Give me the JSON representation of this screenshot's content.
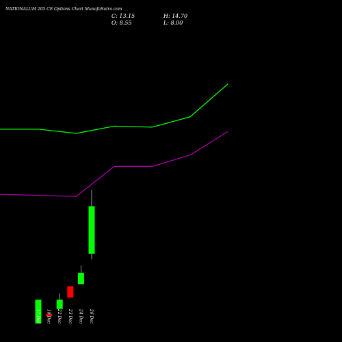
{
  "header": {
    "title": "NATIONALUM 205 CE Options  Chart MunafaSutra.com",
    "close_text": "C: 13.15",
    "open_text": "O: 8.55",
    "high_text": "H: 14.70",
    "low_text": "L: 8.00"
  },
  "colors": {
    "background": "#000000",
    "up": "#00ff00",
    "down": "#ff0000",
    "upper_band": "#00ff00",
    "lower_band": "#aa00aa",
    "text": "#ffffff"
  },
  "chart_data": {
    "type": "candlestick",
    "price_range": [
      0,
      20
    ],
    "categories": [
      "17 Dec",
      "18 Dec",
      "22 Dec",
      "23 Dec",
      "24 Dec",
      "26 Dec"
    ],
    "candles": [
      {
        "date": "17 Dec",
        "open": 4.1,
        "high": 4.1,
        "low": 1.8,
        "close": 1.8,
        "direction": "up"
      },
      {
        "date": "18 Dec",
        "open": 2.7,
        "high": 2.7,
        "low": 2.5,
        "close": 2.5,
        "direction": "down"
      },
      {
        "date": "22 Dec",
        "open": 3.2,
        "high": 4.7,
        "low": 3.2,
        "close": 4.1,
        "direction": "up"
      },
      {
        "date": "23 Dec",
        "open": 5.4,
        "high": 5.4,
        "low": 4.3,
        "close": 4.3,
        "direction": "down"
      },
      {
        "date": "24 Dec",
        "open": 5.6,
        "high": 7.4,
        "low": 5.6,
        "close": 6.7,
        "direction": "up"
      },
      {
        "date": "26 Dec",
        "open": 8.55,
        "high": 14.7,
        "low": 8.0,
        "close": 13.15,
        "direction": "up"
      }
    ],
    "bands": [
      {
        "name": "upper",
        "x": [
          -1,
          0,
          1,
          2,
          3,
          4,
          5
        ],
        "values": [
          20.6,
          20.6,
          20.2,
          20.9,
          20.8,
          21.8,
          25.0
        ]
      },
      {
        "name": "lower",
        "x": [
          -1,
          0,
          1,
          2,
          3,
          4,
          5
        ],
        "values": [
          14.3,
          14.2,
          14.1,
          17.0,
          17.0,
          18.1,
          20.4
        ]
      }
    ]
  }
}
